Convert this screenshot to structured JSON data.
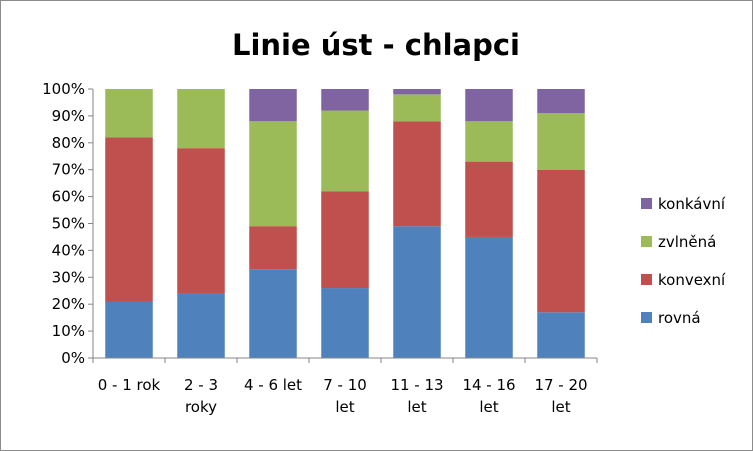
{
  "chart_data": {
    "type": "bar",
    "stacked": "percent",
    "title": "Linie úst - chlapci",
    "xlabel": "",
    "ylabel": "",
    "ylim": [
      0,
      100
    ],
    "yticks": [
      "0%",
      "10%",
      "20%",
      "30%",
      "40%",
      "50%",
      "60%",
      "70%",
      "80%",
      "90%",
      "100%"
    ],
    "categories": [
      [
        "0 - 1 rok"
      ],
      [
        "2 - 3",
        "roky"
      ],
      [
        "4 - 6 let"
      ],
      [
        "7 - 10",
        "let"
      ],
      [
        "11 - 13",
        "let"
      ],
      [
        "14 - 16",
        "let"
      ],
      [
        "17 - 20",
        "let"
      ]
    ],
    "series": [
      {
        "name": "rovná",
        "color": "#4f81bd",
        "values": [
          21,
          24,
          33,
          26,
          49,
          45,
          17
        ]
      },
      {
        "name": "konvexní",
        "color": "#c0504d",
        "values": [
          61,
          54,
          16,
          36,
          39,
          28,
          53
        ]
      },
      {
        "name": "zvlněná",
        "color": "#9bbb59",
        "values": [
          18,
          22,
          39,
          30,
          10,
          15,
          21
        ]
      },
      {
        "name": "konkávní",
        "color": "#8064a2",
        "values": [
          0,
          0,
          12,
          8,
          2,
          12,
          9
        ]
      }
    ],
    "legend": "right",
    "grid": false
  }
}
